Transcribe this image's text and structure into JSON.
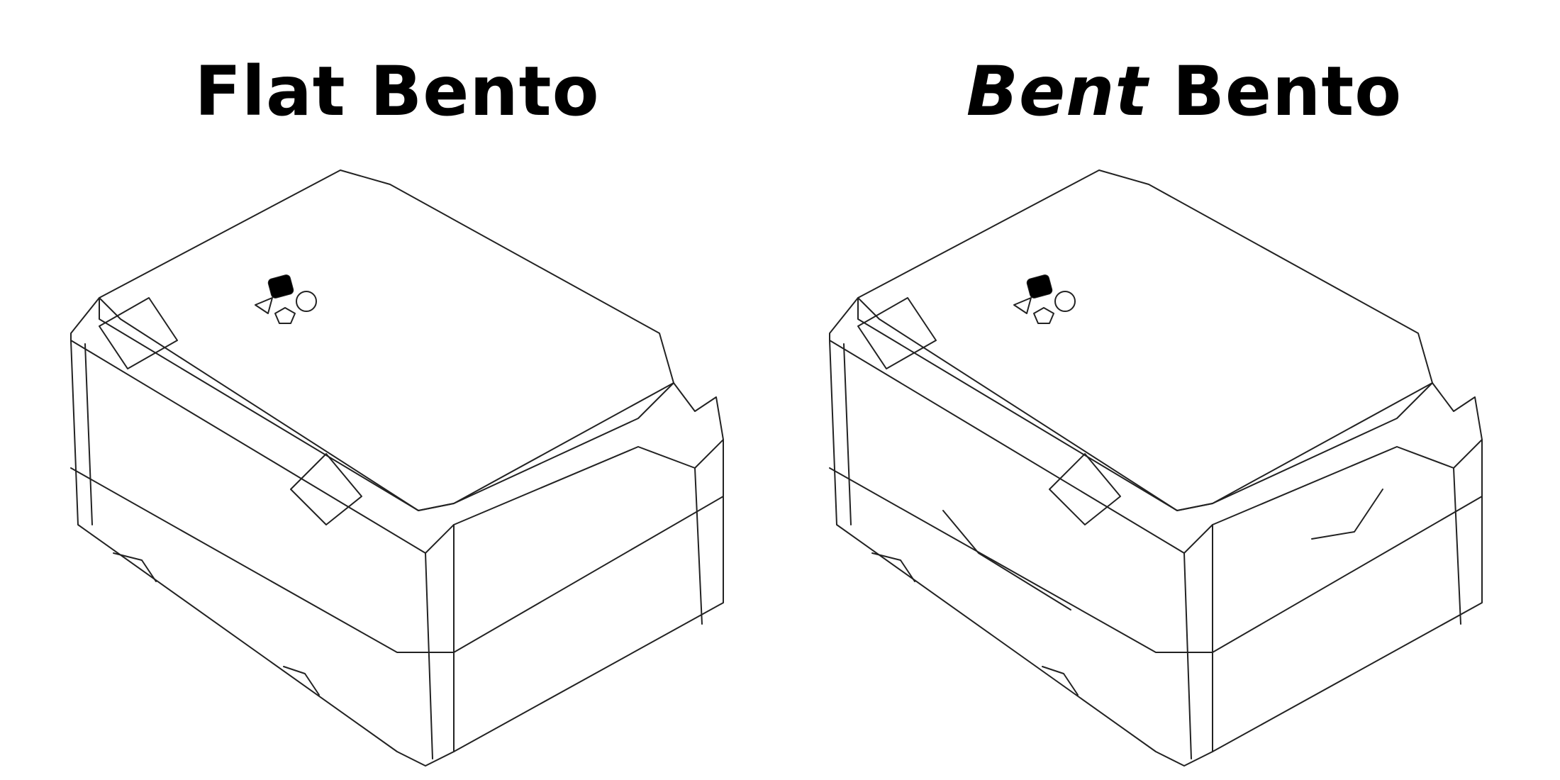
{
  "titles": {
    "left": "Flat Bento",
    "right_emphasis": "Bent",
    "right_rest": " Bento"
  },
  "figures": [
    {
      "name": "flat-bento",
      "cutout": false
    },
    {
      "name": "bent-bento",
      "cutout": true
    }
  ],
  "colors": {
    "line": "#222222",
    "background": "#ffffff",
    "text": "#000000"
  }
}
